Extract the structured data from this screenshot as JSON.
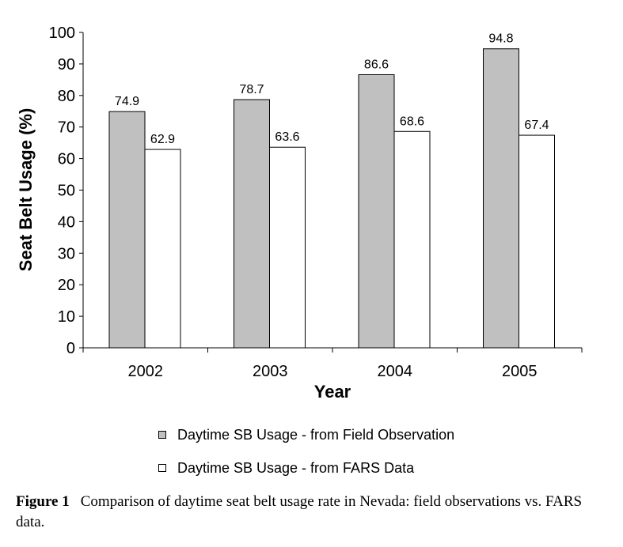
{
  "chart_data": {
    "type": "bar",
    "categories": [
      "2002",
      "2003",
      "2004",
      "2005"
    ],
    "series": [
      {
        "name": "Daytime SB Usage - from Field Observation",
        "values": [
          74.9,
          78.7,
          86.6,
          94.8
        ],
        "color": "#c0c0c0"
      },
      {
        "name": "Daytime SB Usage - from FARS Data",
        "values": [
          62.9,
          63.6,
          68.6,
          67.4
        ],
        "color": "#ffffff"
      }
    ],
    "xlabel": "Year",
    "ylabel": "Seat Belt Usage (%)",
    "ylim": [
      0,
      100
    ],
    "yticks": [
      0,
      10,
      20,
      30,
      40,
      50,
      60,
      70,
      80,
      90,
      100
    ],
    "grid": false,
    "legend_position": "bottom"
  },
  "caption": {
    "label": "Figure 1",
    "text": "Comparison of daytime seat belt usage rate in Nevada: field observations vs. FARS data."
  }
}
